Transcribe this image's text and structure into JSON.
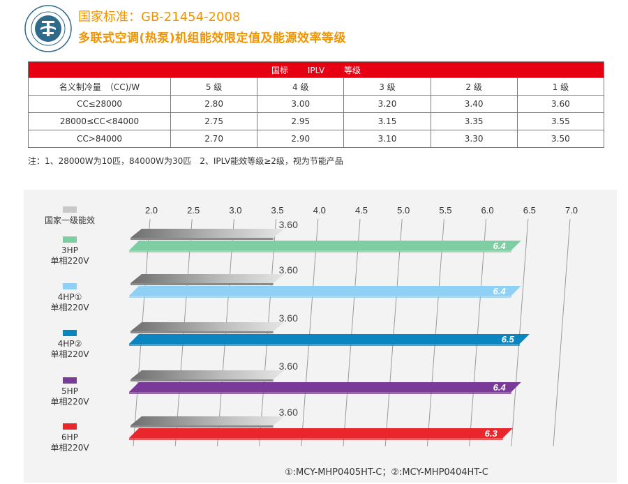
{
  "header": {
    "title_line1": "国家标准：GB-21454-2008",
    "title_line2": "多联式空调(热泵)机组能效限定值及能源效率等级"
  },
  "table": {
    "header_parts": [
      "国标",
      "IPLV",
      "等级"
    ],
    "columns": [
      "名义制冷量　（CC)/W",
      "5 级",
      "4 级",
      "3 级",
      "2 级",
      "1 级"
    ],
    "rows": [
      [
        "CC≤28000",
        "2.80",
        "3.00",
        "3.20",
        "3.40",
        "3.60"
      ],
      [
        "28000≤CC<84000",
        "2.75",
        "2.95",
        "3.15",
        "3.35",
        "3.55"
      ],
      [
        "CC>84000",
        "2.70",
        "2.90",
        "3.10",
        "3.30",
        "3.50"
      ]
    ],
    "note": "注：1、28000W为10匹，84000W为30匹　2、IPLV能效等级≥2级，视为节能产品"
  },
  "chart_data": {
    "type": "bar",
    "orientation": "horizontal",
    "x_ticks": [
      "2.0",
      "2.5",
      "3.0",
      "3.5",
      "4.0",
      "4.5",
      "5.0",
      "5.5",
      "6.0",
      "6.5",
      "7.0"
    ],
    "xlim": [
      2.0,
      7.0
    ],
    "reference_series": {
      "name": "国家一级能效",
      "color": "#c8c8c8",
      "values": [
        3.6,
        3.6,
        3.6,
        3.6,
        3.6
      ],
      "labels": [
        "3.60",
        "3.60",
        "3.60",
        "3.60",
        "3.60"
      ]
    },
    "categories": [
      {
        "line1": "3HP",
        "line2": "单相220V",
        "value": 6.4,
        "label": "6.4",
        "color": "#7fcea3"
      },
      {
        "line1": "4HP①",
        "line2": "单相220V",
        "value": 6.4,
        "label": "6.4",
        "color": "#8fd1f6"
      },
      {
        "line1": "4HP②",
        "line2": "单相220V",
        "value": 6.5,
        "label": "6.5",
        "color": "#0a85c0"
      },
      {
        "line1": "5HP",
        "line2": "单相220V",
        "value": 6.4,
        "label": "6.4",
        "color": "#7a3b98"
      },
      {
        "line1": "6HP",
        "line2": "单相220V",
        "value": 6.3,
        "label": "6.3",
        "color": "#e8262b"
      }
    ],
    "grid": true,
    "footnote": "①:MCY-MHP0405HT-C；②:MCY-MHP0404HT-C"
  }
}
